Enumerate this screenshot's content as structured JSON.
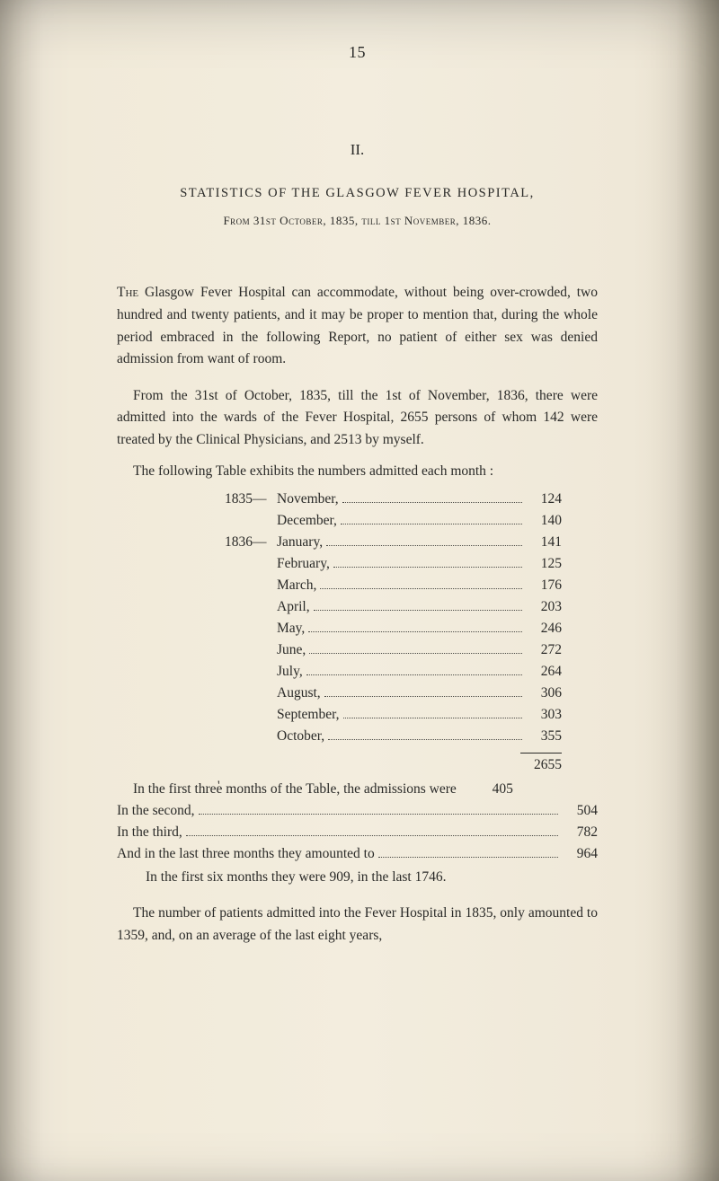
{
  "page_number": "15",
  "section_number": "II.",
  "title": "STATISTICS OF THE GLASGOW FEVER HOSPITAL,",
  "subtitle": "From 31st October, 1835, till 1st November, 1836.",
  "para1": "The Glasgow Fever Hospital can accommodate, without being overcrowded, two hundred and twenty patients, and it may be proper to mention that, during the whole period embraced in the following Report, no patient of either sex was denied admission from want of room.",
  "para2": "From the 31st of October, 1835, till the 1st of November, 1836, there were admitted into the wards of the Fever Hospital, 2655 persons of whom 142 were treated by the Clinical Physicians, and 2513 by myself.",
  "table_intro": "The following Table exhibits the numbers admitted each month :",
  "months": [
    {
      "year": "1835—",
      "name": "November,",
      "value": "124"
    },
    {
      "year": "",
      "name": "December,",
      "value": "140"
    },
    {
      "year": "1836—",
      "name": "January,",
      "value": "141"
    },
    {
      "year": "",
      "name": "February,",
      "value": "125"
    },
    {
      "year": "",
      "name": "March,",
      "value": "176"
    },
    {
      "year": "",
      "name": "April,",
      "value": "203"
    },
    {
      "year": "",
      "name": "May,",
      "value": "246"
    },
    {
      "year": "",
      "name": "June,",
      "value": "272"
    },
    {
      "year": "",
      "name": "July,",
      "value": "264"
    },
    {
      "year": "",
      "name": "August,",
      "value": "306"
    },
    {
      "year": "",
      "name": "September,",
      "value": "303"
    },
    {
      "year": "",
      "name": "October,",
      "value": "355"
    }
  ],
  "total": "2655",
  "sums": [
    {
      "label": "In the first three months of the Table, the admissions were",
      "value": "405"
    },
    {
      "label": "In the second,",
      "value": "504"
    },
    {
      "label": "In the third,",
      "value": "782"
    },
    {
      "label": "And in the last three months they amounted to",
      "value": "964"
    }
  ],
  "tail1": "In the first six months they were 909, in the last 1746.",
  "tail2": "The number of patients admitted into the Fever Hospital in 1835, only amounted to 1359, and, on an average of the last eight years,"
}
